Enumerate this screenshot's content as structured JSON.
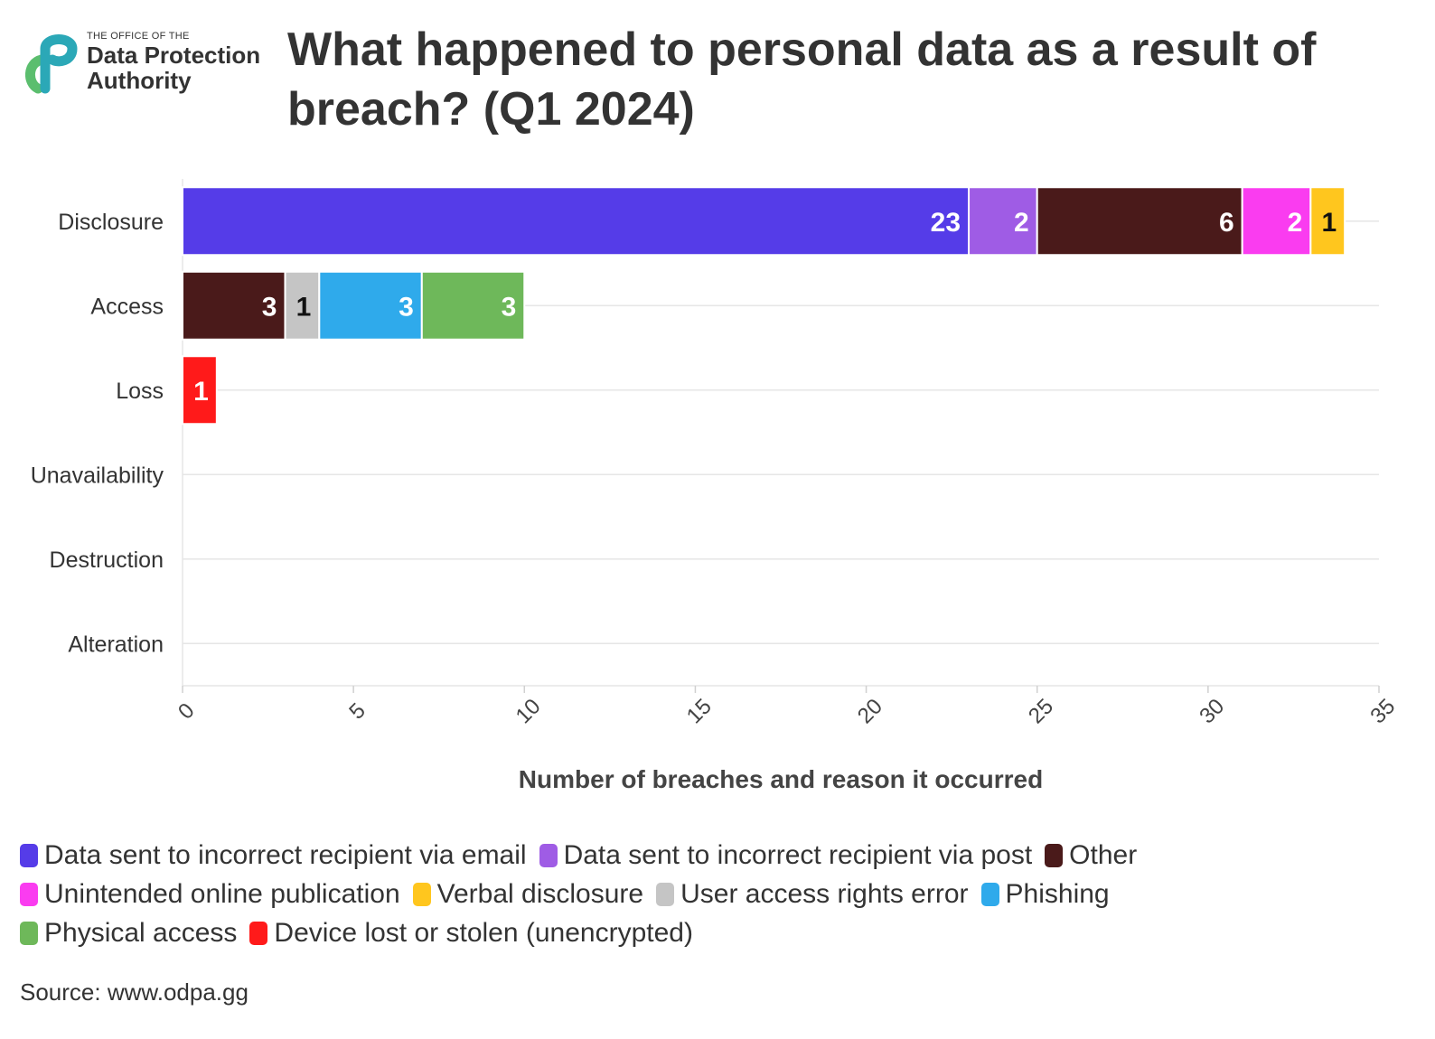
{
  "header": {
    "logo_small_text": "THE OFFICE OF THE",
    "logo_line1": "Data Protection",
    "logo_line2": "Authority",
    "title": "What happened to personal data as a result of breach? (Q1 2024)"
  },
  "footer": {
    "source": "Source: www.odpa.gg"
  },
  "chart_data": {
    "type": "bar",
    "orientation": "horizontal",
    "stacked": true,
    "categories": [
      "Disclosure",
      "Access",
      "Loss",
      "Unavailability",
      "Destruction",
      "Alteration"
    ],
    "xlabel": "Number of breaches and reason it occurred",
    "ylabel": "",
    "xlim": [
      0,
      35
    ],
    "xticks": [
      0,
      5,
      10,
      15,
      20,
      25,
      30,
      35
    ],
    "grid": true,
    "legend_position": "bottom",
    "series": [
      {
        "name": "Data sent to incorrect recipient via email",
        "color": "#553CE8",
        "values": [
          23,
          0,
          0,
          0,
          0,
          0
        ]
      },
      {
        "name": "Data sent to incorrect recipient via post",
        "color": "#9F5CE5",
        "values": [
          2,
          0,
          0,
          0,
          0,
          0
        ]
      },
      {
        "name": "Other",
        "color": "#4A1A1A",
        "values": [
          6,
          3,
          0,
          0,
          0,
          0
        ]
      },
      {
        "name": "Unintended online publication",
        "color": "#FA3CF0",
        "values": [
          2,
          0,
          0,
          0,
          0,
          0
        ]
      },
      {
        "name": "Verbal disclosure",
        "color": "#FFC61E",
        "values": [
          1,
          0,
          0,
          0,
          0,
          0
        ]
      },
      {
        "name": "User access rights error",
        "color": "#C5C5C5",
        "values": [
          0,
          1,
          0,
          0,
          0,
          0
        ]
      },
      {
        "name": "Phishing",
        "color": "#2FAAEB",
        "values": [
          0,
          3,
          0,
          0,
          0,
          0
        ]
      },
      {
        "name": "Physical access",
        "color": "#6EB85A",
        "values": [
          0,
          3,
          0,
          0,
          0,
          0
        ]
      },
      {
        "name": "Device lost or stolen (unencrypted)",
        "color": "#FF1A1A",
        "values": [
          0,
          0,
          1,
          0,
          0,
          0
        ]
      }
    ]
  }
}
